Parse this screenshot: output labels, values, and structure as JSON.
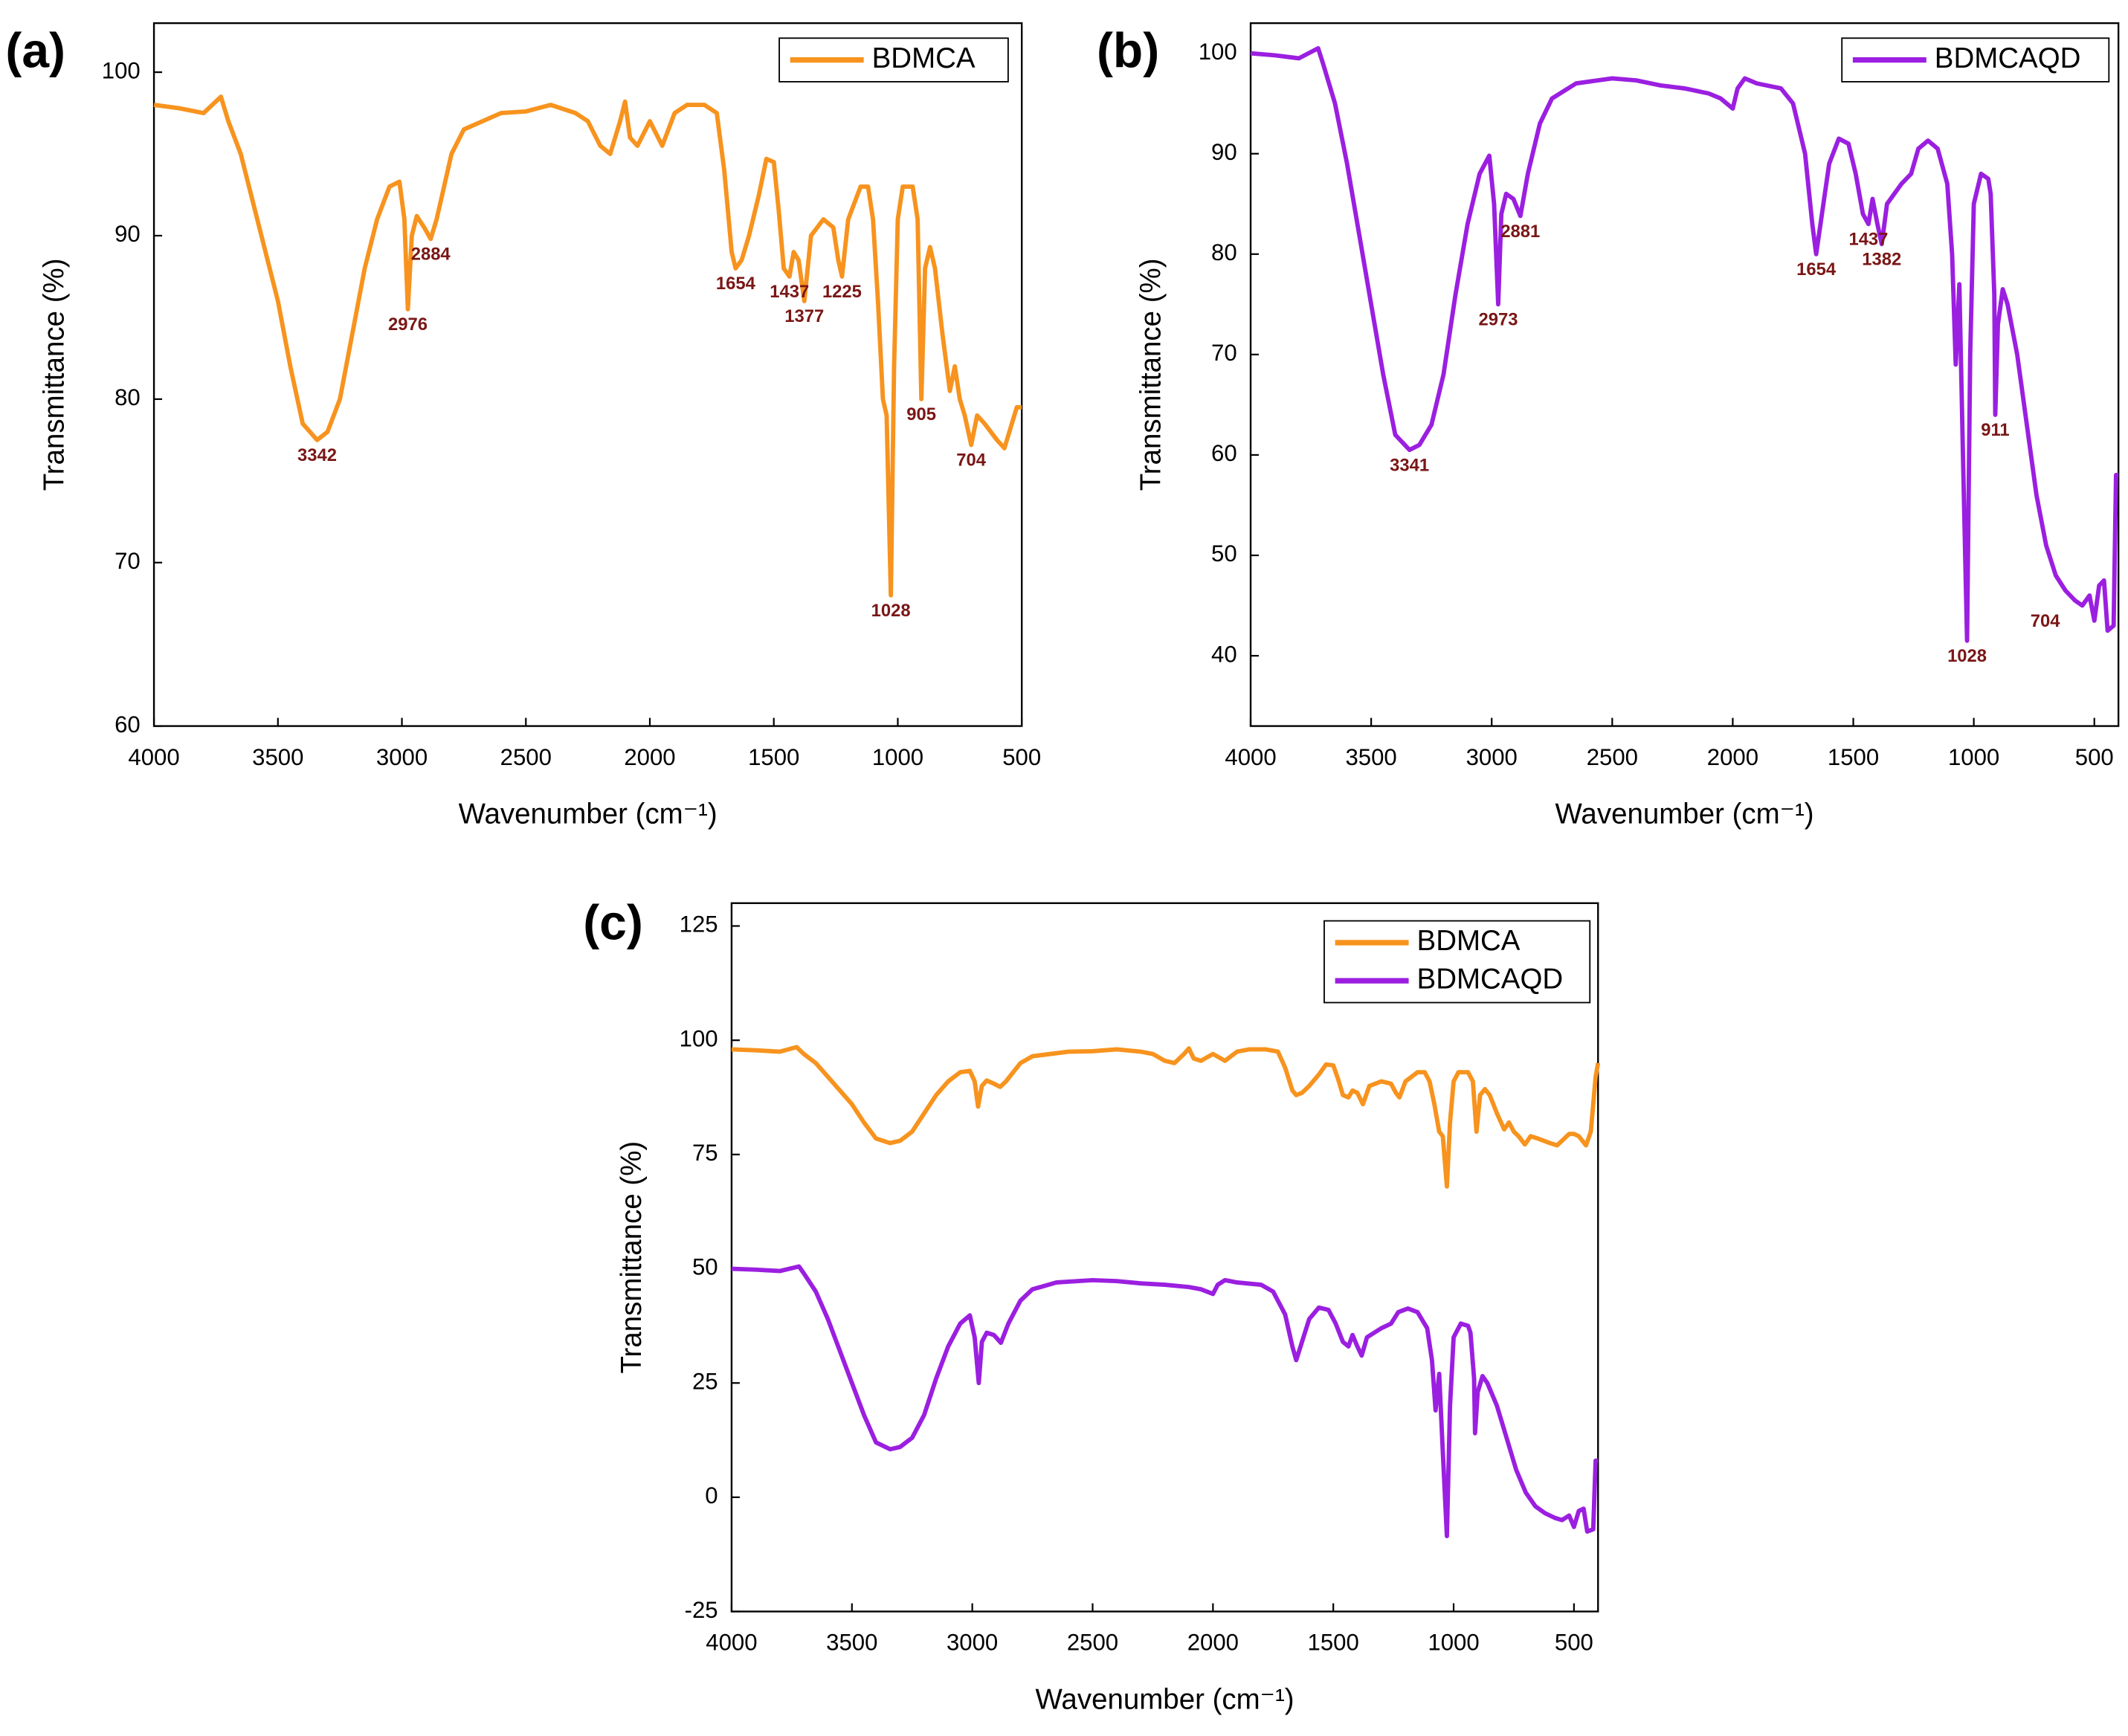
{
  "chart_data": [
    {
      "type": "line",
      "label": "(a)",
      "xlabel": "Wavenumber (cm⁻¹)",
      "ylabel": "Transmittance (%)",
      "xlim": [
        4000,
        500
      ],
      "ylim": [
        60,
        103
      ],
      "xticks": [
        4000,
        3500,
        3000,
        2500,
        2000,
        1500,
        1000,
        500
      ],
      "yticks": [
        60,
        70,
        80,
        90,
        100
      ],
      "series": [
        {
          "name": "BDMCA",
          "color": "#f7931e",
          "x": [
            4000,
            3900,
            3800,
            3730,
            3700,
            3650,
            3600,
            3500,
            3450,
            3400,
            3342,
            3300,
            3250,
            3200,
            3150,
            3100,
            3050,
            3010,
            2990,
            2976,
            2960,
            2940,
            2910,
            2884,
            2860,
            2800,
            2750,
            2600,
            2500,
            2400,
            2300,
            2250,
            2200,
            2160,
            2120,
            2100,
            2080,
            2050,
            2000,
            1950,
            1900,
            1850,
            1780,
            1730,
            1700,
            1670,
            1654,
            1630,
            1600,
            1560,
            1530,
            1500,
            1480,
            1460,
            1437,
            1420,
            1400,
            1377,
            1350,
            1300,
            1260,
            1240,
            1225,
            1200,
            1150,
            1120,
            1100,
            1080,
            1060,
            1045,
            1028,
            1015,
            1000,
            980,
            940,
            920,
            905,
            890,
            870,
            850,
            820,
            790,
            770,
            750,
            730,
            704,
            680,
            650,
            600,
            570,
            540,
            520,
            500
          ],
          "values": [
            98,
            97.8,
            97.5,
            98.5,
            97,
            95,
            92,
            86,
            82,
            78.5,
            77.5,
            78,
            80,
            84,
            88,
            91,
            93,
            93.3,
            91,
            85.5,
            90,
            91.2,
            90.5,
            89.8,
            91,
            95,
            96.5,
            97.5,
            97.6,
            98,
            97.5,
            97,
            95.5,
            95,
            97,
            98.2,
            96,
            95.5,
            97,
            95.5,
            97.5,
            98,
            98,
            97.5,
            94,
            89,
            88,
            88.5,
            90,
            92.5,
            94.7,
            94.5,
            91.5,
            88,
            87.5,
            89,
            88.5,
            86,
            90,
            91,
            90.5,
            88.5,
            87.5,
            91,
            93,
            93,
            91,
            86,
            80,
            79,
            68,
            82,
            91,
            93,
            93,
            91,
            80,
            88,
            89.3,
            88,
            84,
            80.5,
            82,
            80,
            79,
            77.2,
            79,
            78.5,
            77.5,
            77,
            78.5,
            79.5,
            79.5
          ]
        }
      ],
      "annotations": [
        {
          "x": 3342,
          "y": 77.5
        },
        {
          "x": 2976,
          "y": 85.5
        },
        {
          "x": 2884,
          "y": 89.8
        },
        {
          "x": 1654,
          "y": 88
        },
        {
          "x": 1437,
          "y": 87.5
        },
        {
          "x": 1377,
          "y": 86
        },
        {
          "x": 1225,
          "y": 87.5
        },
        {
          "x": 1028,
          "y": 68
        },
        {
          "x": 905,
          "y": 80
        },
        {
          "x": 704,
          "y": 77.2
        }
      ]
    },
    {
      "type": "line",
      "label": "(b)",
      "xlabel": "Wavenumber (cm⁻¹)",
      "ylabel": "Transmittance (%)",
      "xlim": [
        4000,
        400
      ],
      "ylim": [
        33,
        103
      ],
      "xticks": [
        4000,
        3500,
        3000,
        2500,
        2000,
        1500,
        1000,
        500
      ],
      "yticks": [
        40,
        50,
        60,
        70,
        80,
        90,
        100
      ],
      "series": [
        {
          "name": "BDMCAQD",
          "color": "#9b1fe0",
          "x": [
            4000,
            3900,
            3800,
            3720,
            3700,
            3650,
            3600,
            3550,
            3500,
            3450,
            3400,
            3341,
            3300,
            3250,
            3200,
            3150,
            3100,
            3050,
            3010,
            2990,
            2973,
            2960,
            2940,
            2910,
            2881,
            2850,
            2800,
            2750,
            2650,
            2500,
            2400,
            2300,
            2200,
            2100,
            2050,
            2000,
            1980,
            1950,
            1900,
            1800,
            1750,
            1700,
            1670,
            1654,
            1630,
            1600,
            1560,
            1520,
            1490,
            1460,
            1437,
            1420,
            1400,
            1382,
            1360,
            1330,
            1300,
            1260,
            1230,
            1190,
            1150,
            1110,
            1090,
            1075,
            1060,
            1045,
            1028,
            1015,
            1000,
            970,
            940,
            930,
            915,
            911,
            900,
            880,
            860,
            820,
            780,
            740,
            700,
            660,
            620,
            580,
            550,
            520,
            500,
            480,
            460,
            445,
            420,
            410,
            400
          ],
          "values": [
            100,
            99.8,
            99.5,
            100.5,
            99,
            95,
            89,
            82,
            75,
            68,
            62,
            60.5,
            61,
            63,
            68,
            76,
            83,
            88,
            89.8,
            85,
            75,
            84,
            86,
            85.5,
            83.8,
            88,
            93,
            95.5,
            97,
            97.5,
            97.3,
            96.8,
            96.5,
            96,
            95.5,
            94.5,
            96.5,
            97.5,
            97,
            96.5,
            95,
            90,
            83,
            80,
            84,
            89,
            91.5,
            91,
            88,
            84,
            83,
            85.5,
            83,
            81,
            85,
            86,
            87,
            88,
            90.5,
            91.3,
            90.5,
            87,
            80,
            69,
            77,
            60,
            41.5,
            70,
            85,
            88,
            87.5,
            86,
            76,
            64,
            73,
            76.5,
            75,
            70,
            63,
            56,
            51,
            48,
            46.5,
            45.5,
            45,
            46,
            43.5,
            47,
            47.5,
            42.5,
            43,
            58,
            58
          ]
        }
      ],
      "annotations": [
        {
          "x": 3341,
          "y": 60.5
        },
        {
          "x": 2973,
          "y": 75
        },
        {
          "x": 2881,
          "y": 83.8
        },
        {
          "x": 1654,
          "y": 80
        },
        {
          "x": 1437,
          "y": 83
        },
        {
          "x": 1382,
          "y": 81
        },
        {
          "x": 1028,
          "y": 41.5
        },
        {
          "x": 911,
          "y": 64
        },
        {
          "x": 704,
          "y": 45
        }
      ]
    },
    {
      "type": "line",
      "label": "(c)",
      "xlabel": "Wavenumber (cm⁻¹)",
      "ylabel": "Transmittance (%)",
      "xlim": [
        4000,
        400
      ],
      "ylim": [
        -25,
        130
      ],
      "xticks": [
        4000,
        3500,
        3000,
        2500,
        2000,
        1500,
        1000,
        500
      ],
      "yticks": [
        -25,
        0,
        25,
        50,
        75,
        100,
        125
      ],
      "series": [
        {
          "name": "BDMCA",
          "color": "#f7931e",
          "x": [
            4000,
            3900,
            3800,
            3730,
            3700,
            3650,
            3600,
            3500,
            3450,
            3400,
            3342,
            3300,
            3250,
            3200,
            3150,
            3100,
            3050,
            3010,
            2990,
            2976,
            2960,
            2940,
            2910,
            2884,
            2860,
            2800,
            2750,
            2600,
            2500,
            2400,
            2300,
            2250,
            2200,
            2160,
            2120,
            2100,
            2080,
            2050,
            2000,
            1950,
            1900,
            1850,
            1780,
            1730,
            1700,
            1670,
            1654,
            1630,
            1600,
            1560,
            1530,
            1500,
            1480,
            1460,
            1437,
            1420,
            1400,
            1377,
            1350,
            1300,
            1260,
            1240,
            1225,
            1200,
            1150,
            1120,
            1100,
            1080,
            1060,
            1045,
            1028,
            1015,
            1000,
            980,
            940,
            920,
            905,
            890,
            870,
            850,
            820,
            790,
            770,
            750,
            730,
            704,
            680,
            650,
            600,
            570,
            540,
            520,
            500,
            480,
            450,
            430,
            410,
            400
          ],
          "values": [
            98,
            97.8,
            97.5,
            98.5,
            97,
            95,
            92,
            86,
            82,
            78.5,
            77.5,
            78,
            80,
            84,
            88,
            91,
            93,
            93.3,
            91,
            85.5,
            90,
            91.2,
            90.5,
            89.8,
            91,
            95,
            96.5,
            97.5,
            97.6,
            98,
            97.5,
            97,
            95.5,
            95,
            97,
            98.2,
            96,
            95.5,
            97,
            95.5,
            97.5,
            98,
            98,
            97.5,
            94,
            89,
            88,
            88.5,
            90,
            92.5,
            94.7,
            94.5,
            91.5,
            88,
            87.5,
            89,
            88.5,
            86,
            90,
            91,
            90.5,
            88.5,
            87.5,
            91,
            93,
            93,
            91,
            86,
            80,
            79,
            68,
            82,
            91,
            93,
            93,
            91,
            80,
            88,
            89.3,
            88,
            84,
            80.5,
            82,
            80,
            79,
            77.2,
            79,
            78.5,
            77.5,
            77,
            78.5,
            79.5,
            79.5,
            79,
            77,
            80,
            92,
            95
          ]
        },
        {
          "name": "BDMCAQD",
          "color": "#9b1fe0",
          "x": [
            4000,
            3900,
            3800,
            3720,
            3700,
            3650,
            3600,
            3550,
            3500,
            3450,
            3400,
            3341,
            3300,
            3250,
            3200,
            3150,
            3100,
            3050,
            3010,
            2990,
            2973,
            2960,
            2940,
            2910,
            2881,
            2850,
            2800,
            2750,
            2650,
            2500,
            2400,
            2300,
            2200,
            2100,
            2050,
            2000,
            1980,
            1950,
            1900,
            1800,
            1750,
            1700,
            1670,
            1654,
            1630,
            1600,
            1560,
            1520,
            1490,
            1460,
            1437,
            1420,
            1400,
            1382,
            1360,
            1330,
            1300,
            1260,
            1230,
            1190,
            1150,
            1110,
            1090,
            1075,
            1060,
            1045,
            1028,
            1015,
            1000,
            970,
            940,
            930,
            915,
            911,
            900,
            880,
            860,
            820,
            780,
            740,
            700,
            660,
            620,
            580,
            550,
            520,
            500,
            480,
            460,
            445,
            420,
            410,
            400
          ],
          "values": [
            50,
            49.8,
            49.5,
            50.5,
            49,
            45,
            39,
            32,
            25,
            18,
            12,
            10.5,
            11,
            13,
            18,
            26,
            33,
            38,
            39.8,
            35,
            25,
            34,
            36,
            35.5,
            33.8,
            38,
            43,
            45.5,
            47,
            47.5,
            47.3,
            46.8,
            46.5,
            46,
            45.5,
            44.5,
            46.5,
            47.5,
            47,
            46.5,
            45,
            40,
            33,
            30,
            34,
            39,
            41.5,
            41,
            38,
            34,
            33,
            35.5,
            33,
            31,
            35,
            36,
            37,
            38,
            40.5,
            41.3,
            40.5,
            37,
            30,
            19,
            27,
            10,
            -8.5,
            20,
            35,
            38,
            37.5,
            36,
            26,
            14,
            23,
            26.5,
            25,
            20,
            13,
            6,
            1,
            -2,
            -3.5,
            -4.5,
            -5,
            -4,
            -6.5,
            -3,
            -2.5,
            -7.5,
            -7,
            8,
            8
          ]
        }
      ]
    }
  ]
}
